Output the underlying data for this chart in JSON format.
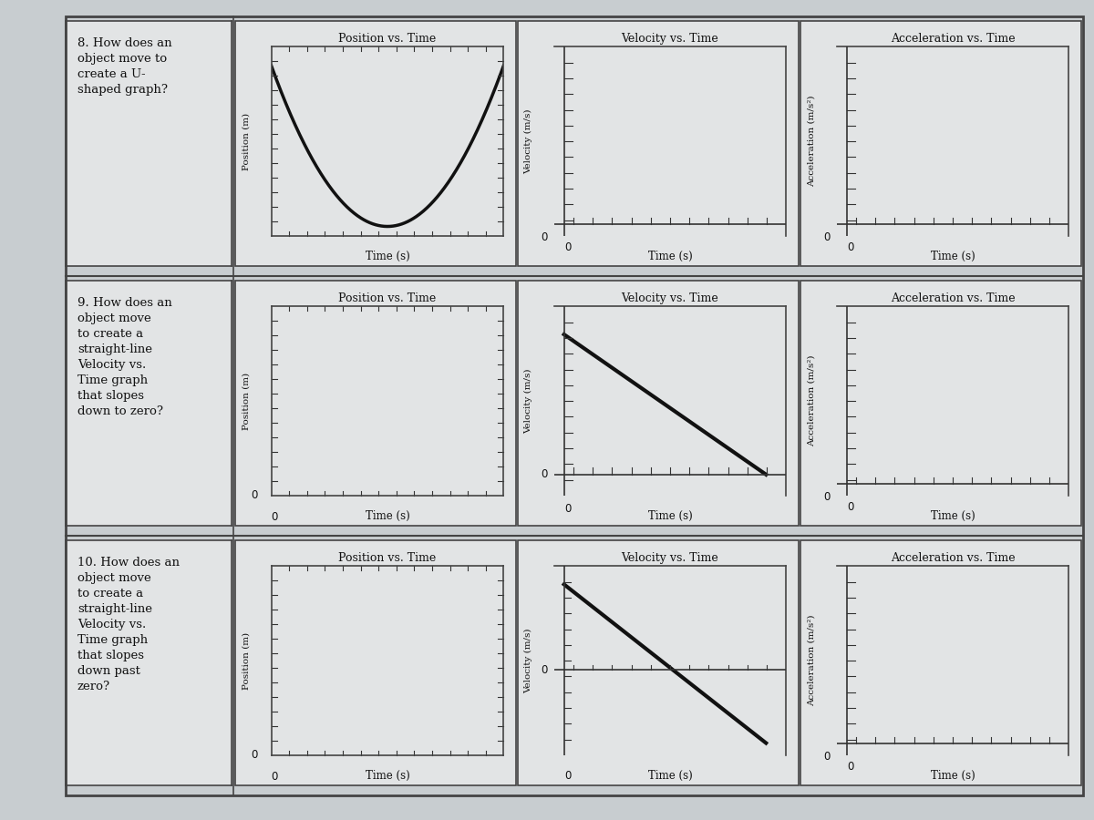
{
  "bg_color": "#c8cdd0",
  "paper_color": "#e2e4e5",
  "border_color": "#444444",
  "line_color": "#111111",
  "axis_color": "#333333",
  "text_color": "#111111",
  "rows": [
    {
      "question_num": "8.",
      "question_lines": [
        "How does an",
        "object move to",
        "create a U-",
        "shaped graph?"
      ],
      "graphs": [
        {
          "title": "Position vs. Time",
          "ylabel": "Position (m)",
          "xlabel": "Time (s)",
          "curve": "U",
          "zero_on_axes": false
        },
        {
          "title": "Velocity vs. Time",
          "ylabel": "Velocity (m/s)",
          "xlabel": "Time (s)",
          "curve": "empty_with_zero",
          "zero_on_axes": true
        },
        {
          "title": "Acceleration vs. Time",
          "ylabel": "Acceleration (m/s²)",
          "xlabel": "Time (s)",
          "curve": "empty_with_zero",
          "zero_on_axes": true
        }
      ]
    },
    {
      "question_num": "9.",
      "question_lines": [
        "How does an",
        "object move",
        "to create a",
        "straight-line",
        "Velocity vs.",
        "Time graph",
        "that slopes",
        "down to zero?"
      ],
      "graphs": [
        {
          "title": "Position vs. Time",
          "ylabel": "Position (m)",
          "xlabel": "Time (s)",
          "curve": "empty_with_zero_and_x",
          "zero_on_axes": true
        },
        {
          "title": "Velocity vs. Time",
          "ylabel": "Velocity (m/s)",
          "xlabel": "Time (s)",
          "curve": "slope_down_to_zero",
          "zero_on_axes": true
        },
        {
          "title": "Acceleration vs. Time",
          "ylabel": "Acceleration (m/s²)",
          "xlabel": "Time (s)",
          "curve": "empty_with_zero",
          "zero_on_axes": true
        }
      ]
    },
    {
      "question_num": "10.",
      "question_lines": [
        "How does an",
        "object move",
        "to create a",
        "straight-line",
        "Velocity vs.",
        "Time graph",
        "that slopes",
        "down past",
        "zero?"
      ],
      "graphs": [
        {
          "title": "Position vs. Time",
          "ylabel": "Position (m)",
          "xlabel": "Time (s)",
          "curve": "empty_with_zero_and_x",
          "zero_on_axes": true
        },
        {
          "title": "Velocity vs. Time",
          "ylabel": "Velocity (m/s)",
          "xlabel": "Time (s)",
          "curve": "slope_down_past_zero",
          "zero_on_axes": true
        },
        {
          "title": "Acceleration vs. Time",
          "ylabel": "Acceleration (m/s²)",
          "xlabel": "Time (s)",
          "curve": "empty_with_zero",
          "zero_on_axes": true
        }
      ]
    }
  ]
}
